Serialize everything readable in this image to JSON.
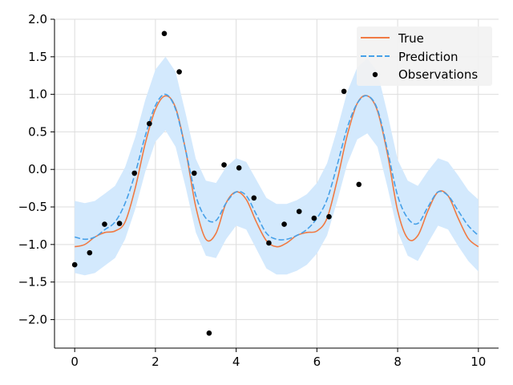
{
  "chart_data": {
    "type": "line",
    "xlim": [
      -0.5,
      10.5
    ],
    "ylim": [
      -2.38,
      2.0
    ],
    "xticks": [
      0,
      2,
      4,
      6,
      8,
      10
    ],
    "xtick_labels": [
      "0",
      "2",
      "4",
      "6",
      "8",
      "10"
    ],
    "yticks": [
      2.0,
      1.5,
      1.0,
      0.5,
      0.0,
      -0.5,
      -1.0,
      -1.5,
      -2.0
    ],
    "ytick_labels": [
      "2.0",
      "1.5",
      "1.0",
      "0.5",
      "0.0",
      "−0.5",
      "−1.0",
      "−1.5",
      "−2.0"
    ],
    "grid": true,
    "legend_position": "top-right",
    "x": [
      0,
      0.25,
      0.5,
      0.75,
      1.0,
      1.25,
      1.5,
      1.75,
      2.0,
      2.25,
      2.5,
      2.75,
      3.0,
      3.25,
      3.5,
      3.75,
      4.0,
      4.25,
      4.5,
      4.75,
      5.0,
      5.25,
      5.5,
      5.75,
      6.0,
      6.25,
      6.5,
      6.75,
      7.0,
      7.25,
      7.5,
      7.75,
      8.0,
      8.25,
      8.5,
      8.75,
      9.0,
      9.25,
      9.5,
      9.75,
      10.0
    ],
    "series": [
      {
        "name": "True",
        "color": "#f07a43",
        "style": "solid",
        "values": [
          -1.03,
          -1.0,
          -0.9,
          -0.84,
          -0.82,
          -0.7,
          -0.25,
          0.35,
          0.8,
          0.98,
          0.82,
          0.25,
          -0.5,
          -0.93,
          -0.85,
          -0.45,
          -0.3,
          -0.4,
          -0.7,
          -0.95,
          -1.03,
          -0.98,
          -0.88,
          -0.84,
          -0.82,
          -0.65,
          -0.15,
          0.45,
          0.88,
          0.98,
          0.78,
          0.2,
          -0.55,
          -0.92,
          -0.88,
          -0.55,
          -0.3,
          -0.35,
          -0.65,
          -0.92,
          -1.03
        ]
      },
      {
        "name": "Prediction",
        "color": "#46a0e8",
        "style": "dashed",
        "values": [
          -0.9,
          -0.93,
          -0.9,
          -0.8,
          -0.7,
          -0.45,
          -0.05,
          0.45,
          0.85,
          1.0,
          0.8,
          0.25,
          -0.35,
          -0.65,
          -0.68,
          -0.45,
          -0.3,
          -0.35,
          -0.6,
          -0.85,
          -0.93,
          -0.93,
          -0.88,
          -0.8,
          -0.65,
          -0.4,
          0.05,
          0.55,
          0.88,
          0.98,
          0.8,
          0.25,
          -0.35,
          -0.65,
          -0.72,
          -0.5,
          -0.3,
          -0.35,
          -0.55,
          -0.75,
          -0.88
        ]
      }
    ],
    "band": {
      "color": "#d3e9fd",
      "upper": [
        -0.42,
        -0.45,
        -0.42,
        -0.32,
        -0.22,
        0.03,
        0.43,
        0.93,
        1.33,
        1.5,
        1.3,
        0.74,
        0.14,
        -0.15,
        -0.18,
        0.03,
        0.15,
        0.1,
        -0.14,
        -0.38,
        -0.46,
        -0.46,
        -0.41,
        -0.33,
        -0.18,
        0.08,
        0.53,
        1.03,
        1.36,
        1.48,
        1.3,
        0.74,
        0.13,
        -0.15,
        -0.22,
        -0.02,
        0.15,
        0.1,
        -0.08,
        -0.28,
        -0.4
      ],
      "lower": [
        -1.38,
        -1.41,
        -1.38,
        -1.28,
        -1.18,
        -0.93,
        -0.53,
        -0.03,
        0.37,
        0.52,
        0.3,
        -0.24,
        -0.84,
        -1.15,
        -1.18,
        -0.93,
        -0.75,
        -0.8,
        -1.06,
        -1.32,
        -1.4,
        -1.4,
        -1.35,
        -1.27,
        -1.12,
        -0.88,
        -0.43,
        0.07,
        0.4,
        0.48,
        0.3,
        -0.24,
        -0.83,
        -1.15,
        -1.22,
        -0.98,
        -0.75,
        -0.8,
        -1.02,
        -1.22,
        -1.36
      ]
    },
    "observations": {
      "name": "Observations",
      "color": "#000000",
      "points": [
        [
          0.0,
          -1.27
        ],
        [
          0.37,
          -1.11
        ],
        [
          0.74,
          -0.73
        ],
        [
          1.11,
          -0.72
        ],
        [
          1.48,
          -0.05
        ],
        [
          1.85,
          0.61
        ],
        [
          2.22,
          1.81
        ],
        [
          2.59,
          1.3
        ],
        [
          2.96,
          -0.05
        ],
        [
          3.33,
          -2.18
        ],
        [
          3.7,
          0.06
        ],
        [
          4.07,
          0.02
        ],
        [
          4.44,
          -0.38
        ],
        [
          4.81,
          -0.98
        ],
        [
          5.19,
          -0.73
        ],
        [
          5.56,
          -0.56
        ],
        [
          5.93,
          -0.65
        ],
        [
          6.3,
          -0.63
        ],
        [
          6.67,
          1.04
        ],
        [
          7.04,
          -0.2
        ]
      ]
    }
  }
}
